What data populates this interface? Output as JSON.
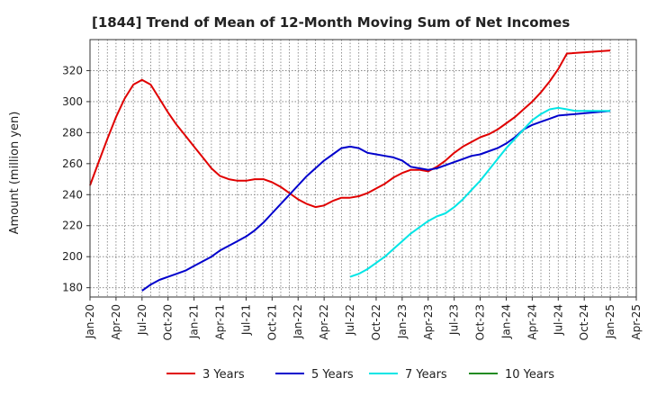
{
  "chart_data": {
    "type": "line",
    "title": "[1844]  Trend of Mean of 12-Month Moving Sum of Net Incomes",
    "ylabel": "Amount (million yen)",
    "xlabel": "",
    "ylim": [
      174,
      340
    ],
    "yticks": [
      180,
      200,
      220,
      240,
      260,
      280,
      300,
      320
    ],
    "xticks": [
      "Jan-20",
      "Apr-20",
      "Jul-20",
      "Oct-20",
      "Jan-21",
      "Apr-21",
      "Jul-21",
      "Oct-21",
      "Jan-22",
      "Apr-22",
      "Jul-22",
      "Oct-22",
      "Jan-23",
      "Apr-23",
      "Jul-23",
      "Oct-23",
      "Jan-24",
      "Apr-24",
      "Jul-24",
      "Oct-24",
      "Jan-25",
      "Apr-25"
    ],
    "grid": true,
    "legend_position": "bottom",
    "series": [
      {
        "name": "3 Years",
        "color": "#e00000",
        "points": [
          [
            "Jan-20",
            246
          ],
          [
            "Feb-20",
            261
          ],
          [
            "Mar-20",
            276
          ],
          [
            "Apr-20",
            290
          ],
          [
            "May-20",
            302
          ],
          [
            "Jun-20",
            311
          ],
          [
            "Jul-20",
            314
          ],
          [
            "Aug-20",
            311
          ],
          [
            "Sep-20",
            302
          ],
          [
            "Oct-20",
            293
          ],
          [
            "Nov-20",
            285
          ],
          [
            "Dec-20",
            278
          ],
          [
            "Jan-21",
            271
          ],
          [
            "Feb-21",
            264
          ],
          [
            "Mar-21",
            257
          ],
          [
            "Apr-21",
            252
          ],
          [
            "May-21",
            250
          ],
          [
            "Jun-21",
            249
          ],
          [
            "Jul-21",
            249
          ],
          [
            "Aug-21",
            250
          ],
          [
            "Sep-21",
            250
          ],
          [
            "Oct-21",
            248
          ],
          [
            "Nov-21",
            245
          ],
          [
            "Dec-21",
            241
          ],
          [
            "Jan-22",
            237
          ],
          [
            "Feb-22",
            234
          ],
          [
            "Mar-22",
            232
          ],
          [
            "Apr-22",
            233
          ],
          [
            "May-22",
            236
          ],
          [
            "Jun-22",
            238
          ],
          [
            "Jul-22",
            238
          ],
          [
            "Aug-22",
            239
          ],
          [
            "Sep-22",
            241
          ],
          [
            "Oct-22",
            244
          ],
          [
            "Nov-22",
            247
          ],
          [
            "Dec-22",
            251
          ],
          [
            "Jan-23",
            254
          ],
          [
            "Feb-23",
            256
          ],
          [
            "Mar-23",
            256
          ],
          [
            "Apr-23",
            255
          ],
          [
            "May-23",
            258
          ],
          [
            "Jun-23",
            262
          ],
          [
            "Jul-23",
            267
          ],
          [
            "Aug-23",
            271
          ],
          [
            "Sep-23",
            274
          ],
          [
            "Oct-23",
            277
          ],
          [
            "Nov-23",
            279
          ],
          [
            "Dec-23",
            282
          ],
          [
            "Jan-24",
            286
          ],
          [
            "Feb-24",
            290
          ],
          [
            "Mar-24",
            295
          ],
          [
            "Apr-24",
            300
          ],
          [
            "May-24",
            306
          ],
          [
            "Jun-24",
            313
          ],
          [
            "Jul-24",
            321
          ],
          [
            "Aug-24",
            331
          ],
          [
            "Jan-25",
            333
          ]
        ]
      },
      {
        "name": "5 Years",
        "color": "#0000cc",
        "points": [
          [
            "Jul-20",
            178
          ],
          [
            "Aug-20",
            182
          ],
          [
            "Sep-20",
            185
          ],
          [
            "Oct-20",
            187
          ],
          [
            "Nov-20",
            189
          ],
          [
            "Dec-20",
            191
          ],
          [
            "Jan-21",
            194
          ],
          [
            "Feb-21",
            197
          ],
          [
            "Mar-21",
            200
          ],
          [
            "Apr-21",
            204
          ],
          [
            "May-21",
            207
          ],
          [
            "Jun-21",
            210
          ],
          [
            "Jul-21",
            213
          ],
          [
            "Aug-21",
            217
          ],
          [
            "Sep-21",
            222
          ],
          [
            "Oct-21",
            228
          ],
          [
            "Nov-21",
            234
          ],
          [
            "Dec-21",
            240
          ],
          [
            "Jan-22",
            246
          ],
          [
            "Feb-22",
            252
          ],
          [
            "Mar-22",
            257
          ],
          [
            "Apr-22",
            262
          ],
          [
            "May-22",
            266
          ],
          [
            "Jun-22",
            270
          ],
          [
            "Jul-22",
            271
          ],
          [
            "Aug-22",
            270
          ],
          [
            "Sep-22",
            267
          ],
          [
            "Oct-22",
            266
          ],
          [
            "Nov-22",
            265
          ],
          [
            "Dec-22",
            264
          ],
          [
            "Jan-23",
            262
          ],
          [
            "Feb-23",
            258
          ],
          [
            "Mar-23",
            257
          ],
          [
            "Apr-23",
            256
          ],
          [
            "May-23",
            257
          ],
          [
            "Jun-23",
            259
          ],
          [
            "Jul-23",
            261
          ],
          [
            "Aug-23",
            263
          ],
          [
            "Sep-23",
            265
          ],
          [
            "Oct-23",
            266
          ],
          [
            "Nov-23",
            268
          ],
          [
            "Dec-23",
            270
          ],
          [
            "Jan-24",
            273
          ],
          [
            "Feb-24",
            277
          ],
          [
            "Mar-24",
            282
          ],
          [
            "Apr-24",
            285
          ],
          [
            "May-24",
            287
          ],
          [
            "Jun-24",
            289
          ],
          [
            "Jul-24",
            291
          ],
          [
            "Jan-25",
            294
          ]
        ]
      },
      {
        "name": "7 Years",
        "color": "#00e5e5",
        "points": [
          [
            "Jul-22",
            187
          ],
          [
            "Aug-22",
            189
          ],
          [
            "Sep-22",
            192
          ],
          [
            "Oct-22",
            196
          ],
          [
            "Nov-22",
            200
          ],
          [
            "Dec-22",
            205
          ],
          [
            "Jan-23",
            210
          ],
          [
            "Feb-23",
            215
          ],
          [
            "Mar-23",
            219
          ],
          [
            "Apr-23",
            223
          ],
          [
            "May-23",
            226
          ],
          [
            "Jun-23",
            228
          ],
          [
            "Jul-23",
            232
          ],
          [
            "Aug-23",
            237
          ],
          [
            "Sep-23",
            243
          ],
          [
            "Oct-23",
            249
          ],
          [
            "Nov-23",
            256
          ],
          [
            "Dec-23",
            263
          ],
          [
            "Jan-24",
            270
          ],
          [
            "Feb-24",
            276
          ],
          [
            "Mar-24",
            282
          ],
          [
            "Apr-24",
            288
          ],
          [
            "May-24",
            292
          ],
          [
            "Jun-24",
            295
          ],
          [
            "Jul-24",
            296
          ],
          [
            "Aug-24",
            295
          ],
          [
            "Sep-24",
            294
          ],
          [
            "Jan-25",
            294
          ]
        ]
      },
      {
        "name": "10 Years",
        "color": "#228b22",
        "points": []
      }
    ]
  }
}
